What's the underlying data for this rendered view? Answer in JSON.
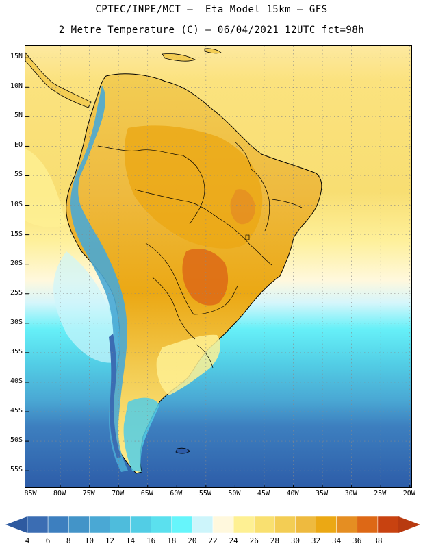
{
  "header": {
    "title_line1": "CPTEC/INPE/MCT –  Eta Model 15km – GFS",
    "title_line2": "2 Metre Temperature (C) – 06/04/2021 12UTC fct=98h"
  },
  "map": {
    "variable": "2 Metre Temperature",
    "units": "C",
    "lat_range": [
      -58,
      17
    ],
    "lon_range": [
      -86,
      -19.5
    ],
    "lat_ticks": [
      "15N",
      "10N",
      "5N",
      "EQ",
      "5S",
      "10S",
      "15S",
      "20S",
      "25S",
      "30S",
      "35S",
      "40S",
      "45S",
      "50S",
      "55S"
    ],
    "lat_values": [
      15,
      10,
      5,
      0,
      -5,
      -10,
      -15,
      -20,
      -25,
      -30,
      -35,
      -40,
      -45,
      -50,
      -55
    ],
    "lon_ticks": [
      "85W",
      "80W",
      "75W",
      "70W",
      "65W",
      "60W",
      "55W",
      "50W",
      "45W",
      "40W",
      "35W",
      "30W",
      "25W",
      "20W"
    ],
    "lon_values": [
      -85,
      -80,
      -75,
      -70,
      -65,
      -60,
      -55,
      -50,
      -45,
      -40,
      -35,
      -30,
      -25,
      -20
    ]
  },
  "colorbar": {
    "labels": [
      "4",
      "6",
      "8",
      "10",
      "12",
      "14",
      "16",
      "18",
      "20",
      "22",
      "24",
      "26",
      "28",
      "30",
      "32",
      "34",
      "36",
      "38"
    ],
    "colors": [
      "#3b6db3",
      "#3d7fbf",
      "#4394c8",
      "#4aa8d4",
      "#4ebcdc",
      "#52cde5",
      "#5be0ee",
      "#66f5fb",
      "#cdf5fb",
      "#fff8dd",
      "#fef093",
      "#f9e070",
      "#f3cd54",
      "#eeba3f",
      "#eba814",
      "#e58e22",
      "#dd6816",
      "#c84210"
    ],
    "low_arrow_color": "#2e5aa0",
    "high_arrow_color": "#b83a10"
  },
  "palette": {
    "ocean_deep": "#2d5ca8",
    "ocean_mid": "#4cbcdc",
    "ocean_cyan": "#64f0f8",
    "ocean_pale": "#d2f5fb",
    "ocean_yellow": "#fff29a",
    "ocean_warm": "#f7d96a",
    "land_hot": "#eba814",
    "land_warm": "#f0b93e",
    "land_very_hot": "#e07a1c",
    "andes_cold": "#3b6db3",
    "coast_line": "#000000",
    "grid_line": "#888888"
  }
}
